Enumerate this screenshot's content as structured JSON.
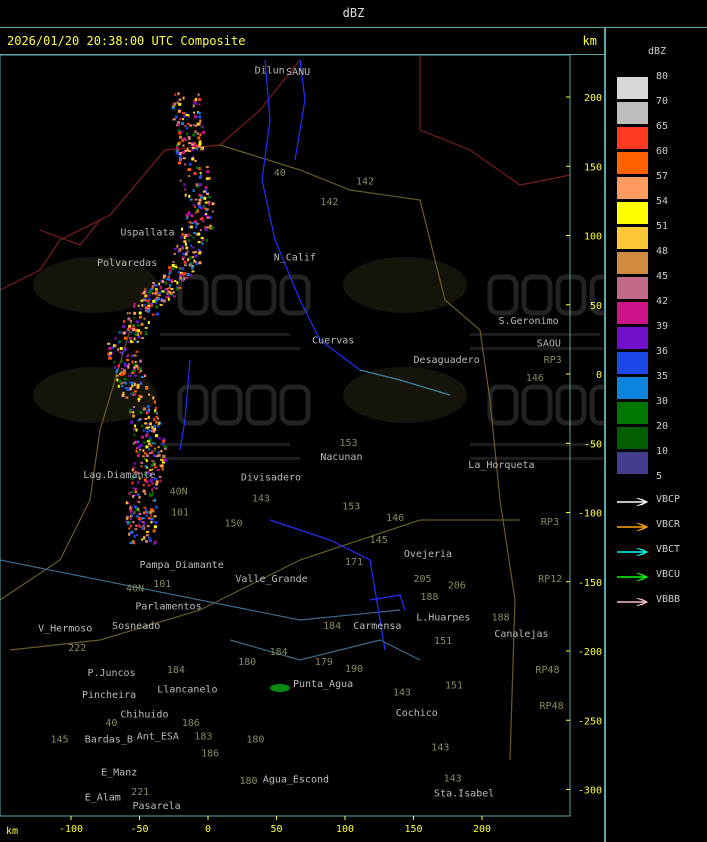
{
  "window_title": "dBZ",
  "header": {
    "timestamp": "2026/01/20 20:38:00 UTC Composite",
    "unit": "km"
  },
  "axes": {
    "unit": "km",
    "x_ticks": [
      -100,
      -50,
      0,
      50,
      100,
      150,
      200
    ],
    "y_ticks": [
      200,
      150,
      100,
      50,
      0,
      -50,
      -100,
      -150,
      -200,
      -250,
      -300
    ]
  },
  "legend": {
    "title": "dBZ",
    "bins": [
      {
        "label": "80",
        "color": "#d8d8d8"
      },
      {
        "label": "70",
        "color": "#bdbdbd"
      },
      {
        "label": "65",
        "color": "#ff3a20"
      },
      {
        "label": "60",
        "color": "#ff6000"
      },
      {
        "label": "57",
        "color": "#ff9a60"
      },
      {
        "label": "54",
        "color": "#ffff00"
      },
      {
        "label": "51",
        "color": "#fcc634"
      },
      {
        "label": "48",
        "color": "#d08a40"
      },
      {
        "label": "45",
        "color": "#c06a88"
      },
      {
        "label": "42",
        "color": "#cc1488"
      },
      {
        "label": "39",
        "color": "#7010c8"
      },
      {
        "label": "36",
        "color": "#1c48ea"
      },
      {
        "label": "35",
        "color": "#0c84dc"
      },
      {
        "label": "30",
        "color": "#007800"
      },
      {
        "label": "20",
        "color": "#005e00"
      },
      {
        "label": "10",
        "color": "#443c8c"
      },
      {
        "label": "5",
        "color": ""
      }
    ],
    "radars": [
      {
        "name": "VBCP",
        "color": "#ffffff"
      },
      {
        "name": "VBCR",
        "color": "#ffa500"
      },
      {
        "name": "VBCT",
        "color": "#00ffff"
      },
      {
        "name": "VBCU",
        "color": "#00ff00"
      },
      {
        "name": "VBBB",
        "color": "#ffc0cb"
      }
    ]
  },
  "watermark": {
    "logo": "DACC",
    "line1": "Dirección de Agricultura",
    "line2": "y Contingencias Climáticas"
  },
  "places": [
    {
      "name": "Dilun",
      "x": 34,
      "y": 225
    },
    {
      "name": "SANU",
      "x": 57,
      "y": 216
    },
    {
      "name": "N_Calif",
      "x": 48,
      "y": 82
    },
    {
      "name": "Uspallata",
      "x": -64,
      "y": 100
    },
    {
      "name": "Polvaredas",
      "x": -81,
      "y": 78
    },
    {
      "name": "Cuervas",
      "x": 76,
      "y": 22
    },
    {
      "name": "Desaguadero",
      "x": 150,
      "y": 8
    },
    {
      "name": "S.Geronimo",
      "x": 212,
      "y": 36
    },
    {
      "name": "SAOU",
      "x": 240,
      "y": 20
    },
    {
      "name": "Nacunan",
      "x": 82,
      "y": -62
    },
    {
      "name": "La_Horqueta",
      "x": 190,
      "y": -68
    },
    {
      "name": "Lag.Diamante",
      "x": -91,
      "y": -75
    },
    {
      "name": "Divisadero",
      "x": 24,
      "y": -77
    },
    {
      "name": "Pampa_Diamante",
      "x": -50,
      "y": -140
    },
    {
      "name": "Valle_Grande",
      "x": 20,
      "y": -150
    },
    {
      "name": "Parlamentos",
      "x": -53,
      "y": -170
    },
    {
      "name": "Sosneado",
      "x": -70,
      "y": -176
    },
    {
      "name": "V_Hermoso",
      "x": -124,
      "y": -186
    },
    {
      "name": "Carmensa",
      "x": 106,
      "y": -184
    },
    {
      "name": "L.Huarpes",
      "x": 152,
      "y": -178
    },
    {
      "name": "Canalejas",
      "x": 209,
      "y": -190
    },
    {
      "name": "Punta_Agua",
      "x": 62,
      "y": -226
    },
    {
      "name": "P.Juncos",
      "x": -88,
      "y": -218
    },
    {
      "name": "Pincheira",
      "x": -92,
      "y": -226
    },
    {
      "name": "Llancanelo",
      "x": -37,
      "y": -230
    },
    {
      "name": "Chihuido",
      "x": -64,
      "y": -240
    },
    {
      "name": "Ant_ESA",
      "x": -52,
      "y": -256
    },
    {
      "name": "Bardas_B",
      "x": -90,
      "y": -266
    },
    {
      "name": "Cochico",
      "x": 137,
      "y": -247
    },
    {
      "name": "Agua_Escond",
      "x": 40,
      "y": -295
    },
    {
      "name": "E_Manz",
      "x": -78,
      "y": -290
    },
    {
      "name": "E_Alam",
      "x": -90,
      "y": -308
    },
    {
      "name": "Pasarela",
      "x": -77,
      "y": -314
    },
    {
      "name": "Sta.Isabel",
      "x": 165,
      "y": -305
    },
    {
      "name": "Ovejeria",
      "x": 143,
      "y": -132
    }
  ],
  "routes": [
    {
      "name": "40",
      "x": 48,
      "y": 143
    },
    {
      "name": "142",
      "x": 108,
      "y": 137
    },
    {
      "name": "142",
      "x": 82,
      "y": 122
    },
    {
      "name": "153",
      "x": 96,
      "y": -52
    },
    {
      "name": "143",
      "x": 32,
      "y": -92
    },
    {
      "name": "153",
      "x": 98,
      "y": -98
    },
    {
      "name": "146",
      "x": 130,
      "y": -106
    },
    {
      "name": "146",
      "x": 232,
      "y": -5
    },
    {
      "name": "205",
      "x": 150,
      "y": -150
    },
    {
      "name": "206",
      "x": 175,
      "y": -155
    },
    {
      "name": "188",
      "x": 155,
      "y": -171
    },
    {
      "name": "151",
      "x": 165,
      "y": -195
    },
    {
      "name": "151",
      "x": 173,
      "y": -227
    },
    {
      "name": "184",
      "x": 84,
      "y": -184
    },
    {
      "name": "184",
      "x": -30,
      "y": -216
    },
    {
      "name": "184",
      "x": 45,
      "y": -203
    },
    {
      "name": "180",
      "x": 22,
      "y": -210
    },
    {
      "name": "179",
      "x": 78,
      "y": -218
    },
    {
      "name": "190",
      "x": 100,
      "y": -223
    },
    {
      "name": "143",
      "x": 135,
      "y": -232
    },
    {
      "name": "143",
      "x": 163,
      "y": -272
    },
    {
      "name": "143",
      "x": 172,
      "y": -302
    },
    {
      "name": "186",
      "x": -30,
      "y": -254
    },
    {
      "name": "186",
      "x": -5,
      "y": -276
    },
    {
      "name": "183",
      "x": -10,
      "y": -256
    },
    {
      "name": "180",
      "x": 28,
      "y": -266
    },
    {
      "name": "180",
      "x": 23,
      "y": -296
    },
    {
      "name": "145",
      "x": -115,
      "y": -266
    },
    {
      "name": "221",
      "x": -78,
      "y": -304
    },
    {
      "name": "222",
      "x": -102,
      "y": -192
    },
    {
      "name": "188",
      "x": 207,
      "y": -186
    },
    {
      "name": "RP3",
      "x": 245,
      "y": 0
    },
    {
      "name": "RP3",
      "x": 243,
      "y": -109
    },
    {
      "name": "RP12",
      "x": 241,
      "y": -150
    },
    {
      "name": "RP48",
      "x": 239,
      "y": -216
    },
    {
      "name": "RP48",
      "x": 242,
      "y": -242
    },
    {
      "name": "150",
      "x": 12,
      "y": -110
    },
    {
      "name": "101",
      "x": -27,
      "y": -102
    },
    {
      "name": "101",
      "x": -40,
      "y": -146
    },
    {
      "name": "40N",
      "x": -28,
      "y": -87
    },
    {
      "name": "40N",
      "x": -38,
      "y": -157
    },
    {
      "name": "40",
      "x": -64,
      "y": -254
    },
    {
      "name": "171",
      "x": 100,
      "y": -138
    },
    {
      "name": "145",
      "x": 118,
      "y": -114
    }
  ]
}
